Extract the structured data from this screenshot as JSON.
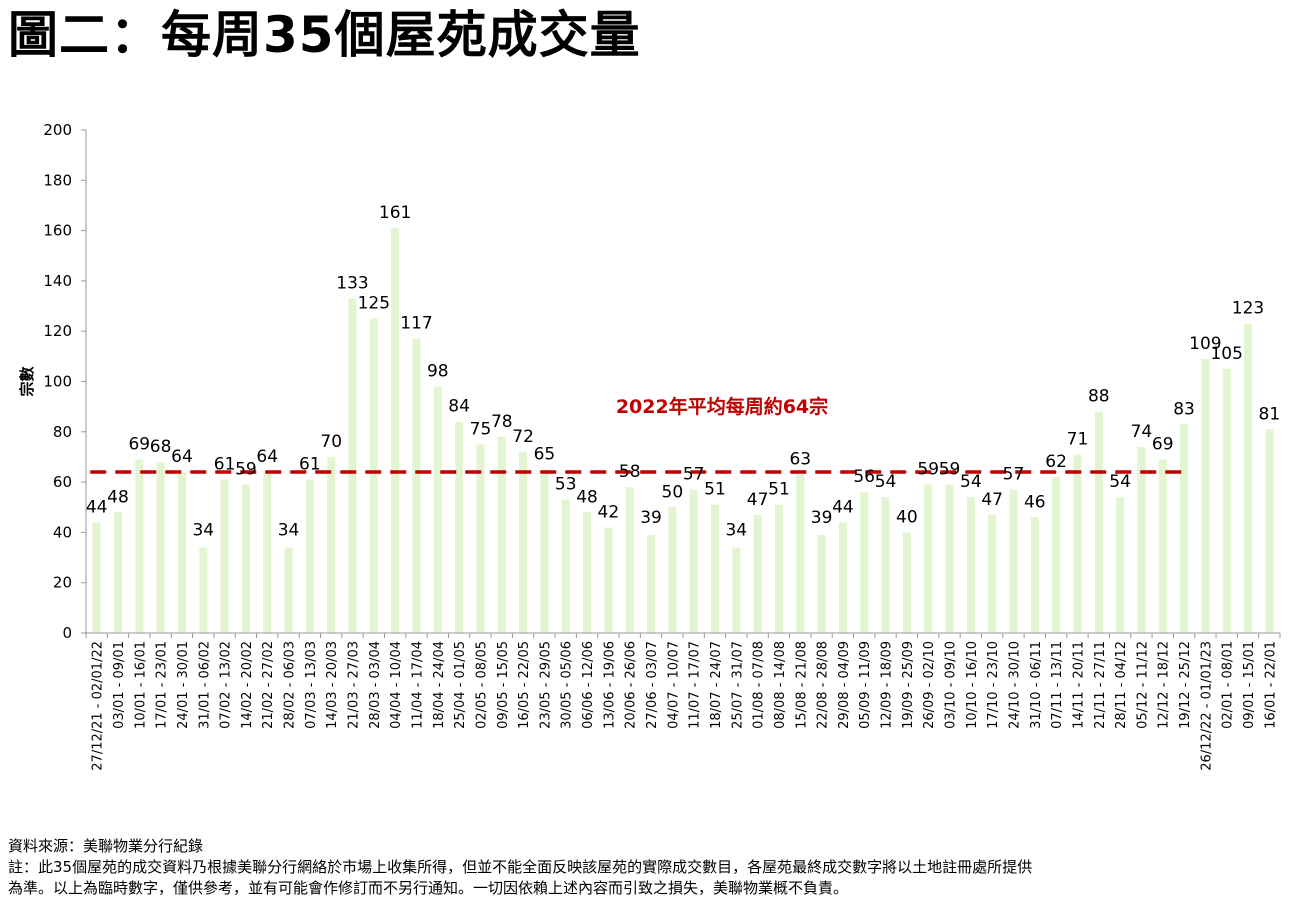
{
  "title": "圖二：每周35個屋苑成交量",
  "chart_data": {
    "type": "bar",
    "ylabel": "宗數",
    "ylim": [
      0,
      200
    ],
    "yticks": [
      0,
      20,
      40,
      60,
      80,
      100,
      120,
      140,
      160,
      180,
      200
    ],
    "average": {
      "value": 64,
      "label": "2022年平均每周約64宗",
      "color": "#c00000"
    },
    "bar_color": "#e2f5d0",
    "categories": [
      "27/12/21 - 02/01/22",
      "03/01 - 09/01",
      "10/01 - 16/01",
      "17/01 - 23/01",
      "24/01 - 30/01",
      "31/01 - 06/02",
      "07/02 - 13/02",
      "14/02 - 20/02",
      "21/02 - 27/02",
      "28/02 - 06/03",
      "07/03 - 13/03",
      "14/03 - 20/03",
      "21/03 - 27/03",
      "28/03 - 03/04",
      "04/04 - 10/04",
      "11/04 - 17/04",
      "18/04 - 24/04",
      "25/04 - 01/05",
      "02/05 - 08/05",
      "09/05 - 15/05",
      "16/05 - 22/05",
      "23/05 - 29/05",
      "30/05 - 05/06",
      "06/06 - 12/06",
      "13/06 - 19/06",
      "20/06 - 26/06",
      "27/06 - 03/07",
      "04/07 - 10/07",
      "11/07 - 17/07",
      "18/07 - 24/07",
      "25/07 - 31/07",
      "01/08 - 07/08",
      "08/08 - 14/08",
      "15/08 - 21/08",
      "22/08 - 28/08",
      "29/08 - 04/09",
      "05/09 - 11/09",
      "12/09 - 18/09",
      "19/09 - 25/09",
      "26/09 - 02/10",
      "03/10 - 09/10",
      "10/10 - 16/10",
      "17/10 - 23/10",
      "24/10 - 30/10",
      "31/10 - 06/11",
      "07/11 - 13/11",
      "14/11 - 20/11",
      "21/11 - 27/11",
      "28/11 - 04/12",
      "05/12 - 11/12",
      "12/12 - 18/12",
      "19/12 - 25/12",
      "26/12/22 - 01/01/23",
      "02/01 - 08/01",
      "09/01 - 15/01",
      "16/01 - 22/01"
    ],
    "values": [
      44,
      48,
      69,
      68,
      64,
      34,
      61,
      59,
      64,
      34,
      61,
      70,
      133,
      125,
      161,
      117,
      98,
      84,
      75,
      78,
      72,
      65,
      53,
      48,
      42,
      58,
      39,
      50,
      57,
      51,
      34,
      47,
      51,
      63,
      39,
      44,
      56,
      54,
      40,
      59,
      59,
      54,
      47,
      57,
      46,
      62,
      71,
      88,
      54,
      74,
      69,
      83,
      109,
      105,
      123,
      81
    ]
  },
  "footer": {
    "source": "資料來源：美聯物業分行紀錄",
    "note_line1": "註：此35個屋苑的成交資料乃根據美聯分行網絡於市場上收集所得，但並不能全面反映該屋苑的實際成交數目，各屋苑最終成交數字將以土地註冊處所提供",
    "note_line2": "為準。以上為臨時數字，僅供參考，並有可能會作修訂而不另行通知。一切因依賴上述內容而引致之損失，美聯物業概不負責。"
  }
}
